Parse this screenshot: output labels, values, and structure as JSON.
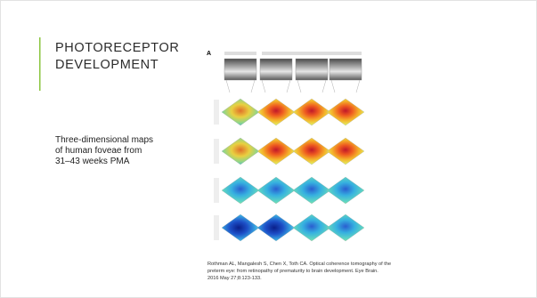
{
  "slide": {
    "title_lines": [
      "PHOTORECEPTOR",
      "DEVELOPMENT"
    ],
    "body_lines": [
      "Three-dimensional maps",
      "of human foveae from",
      "31–43 weeks PMA"
    ],
    "figure_label": "A",
    "citation_lines": [
      "Rothman AL, Mangalesh S, Chen X, Toth CA. Optical coherence tomography of the",
      "preterm eye: from retinopathy of prematurity to brain development. Eye Brain.",
      "2016 May 27;8:123-133."
    ]
  }
}
